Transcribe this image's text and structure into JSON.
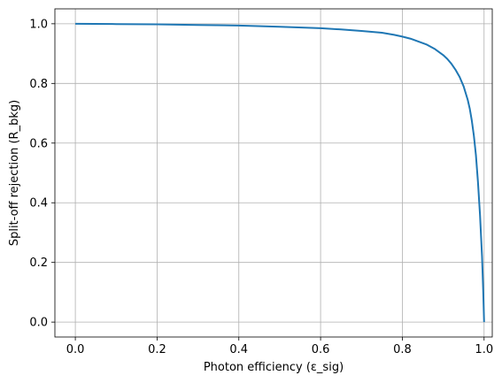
{
  "chart_data": {
    "type": "line",
    "title": "",
    "xlabel": "Photon efficiency (ε_sig)",
    "ylabel": "Split-off rejection (R_bkg)",
    "xlim": [
      -0.05,
      1.02
    ],
    "ylim": [
      -0.05,
      1.05
    ],
    "xticks": [
      0.0,
      0.2,
      0.4,
      0.6,
      0.8,
      1.0
    ],
    "xtick_labels": [
      "0.0",
      "0.2",
      "0.4",
      "0.6",
      "0.8",
      "1.0"
    ],
    "yticks": [
      0.0,
      0.2,
      0.4,
      0.6,
      0.8,
      1.0
    ],
    "ytick_labels": [
      "0.0",
      "0.2",
      "0.4",
      "0.6",
      "0.8",
      "1.0"
    ],
    "grid": true,
    "series": [
      {
        "color": "#1f77b4",
        "x": [
          0.0,
          0.1,
          0.2,
          0.3,
          0.4,
          0.5,
          0.6,
          0.65,
          0.7,
          0.75,
          0.78,
          0.8,
          0.82,
          0.84,
          0.86,
          0.88,
          0.9,
          0.91,
          0.92,
          0.93,
          0.94,
          0.95,
          0.96,
          0.965,
          0.97,
          0.975,
          0.98,
          0.985,
          0.99,
          0.995,
          0.998,
          1.0
        ],
        "y": [
          1.0,
          0.999,
          0.998,
          0.996,
          0.994,
          0.99,
          0.985,
          0.981,
          0.976,
          0.97,
          0.963,
          0.957,
          0.95,
          0.94,
          0.93,
          0.915,
          0.895,
          0.882,
          0.866,
          0.846,
          0.822,
          0.79,
          0.745,
          0.715,
          0.675,
          0.625,
          0.56,
          0.47,
          0.36,
          0.22,
          0.1,
          0.0
        ]
      }
    ]
  }
}
